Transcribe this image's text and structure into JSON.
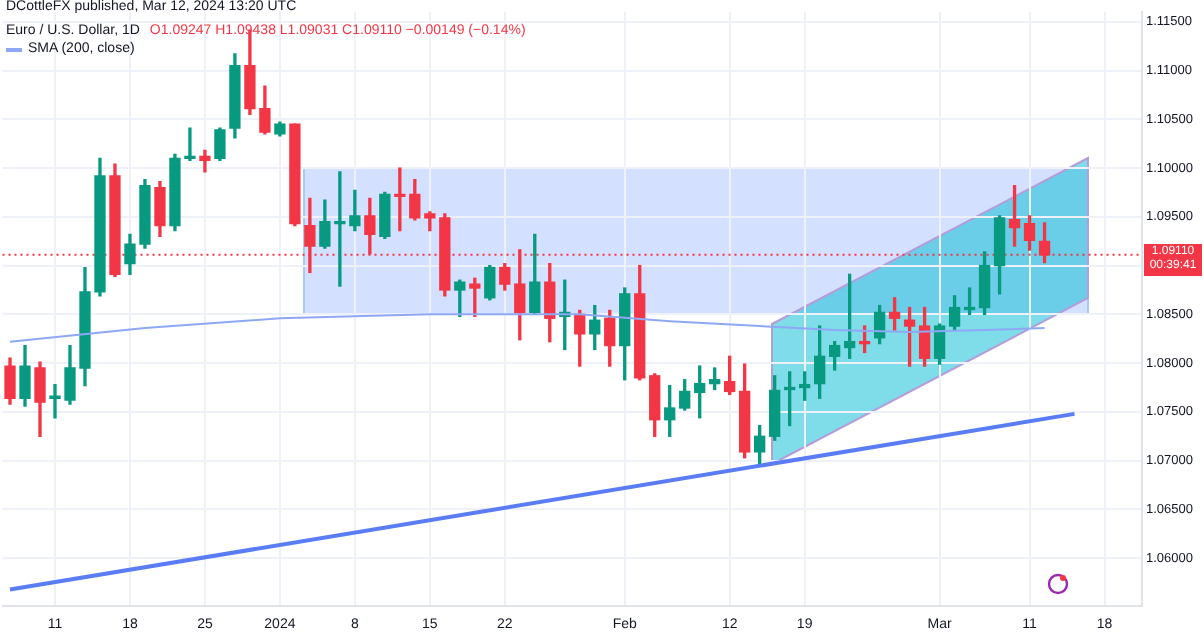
{
  "chart_data": {
    "type": "candlestick",
    "title": "Euro / U.S. Dollar, 1D",
    "annotations": [
      "DCottleFX published, Mar 12, 2024 13:20 UTC",
      "O1.09247 H1.09438 L1.09031 C1.09110 −0.00149 (−0.14%)",
      "00:39:41"
    ],
    "categories": [
      null,
      null,
      null,
      "11",
      null,
      null,
      null,
      null,
      "18",
      null,
      null,
      null,
      null,
      "25",
      null,
      null,
      null,
      null,
      "2024",
      null,
      null,
      null,
      null,
      "8",
      null,
      null,
      null,
      null,
      "15",
      null,
      null,
      null,
      null,
      "22",
      null,
      null,
      null,
      null,
      null,
      null,
      null,
      "Feb",
      null,
      null,
      null,
      null,
      null,
      null,
      "12",
      null,
      null,
      null,
      null,
      "19",
      null,
      null,
      null,
      null,
      null,
      null,
      null,
      null,
      "Mar",
      null,
      null,
      null,
      null,
      null,
      "11",
      null,
      null,
      null,
      null,
      "18",
      null,
      null
    ],
    "ohlc": [
      [
        1.0797,
        1.0805,
        1.0758,
        1.0764
      ],
      [
        1.0764,
        1.0818,
        1.0756,
        1.0797
      ],
      [
        1.0795,
        1.0801,
        1.0725,
        1.076
      ],
      [
        1.0764,
        1.0778,
        1.0744,
        1.0765
      ],
      [
        1.0762,
        1.0818,
        1.0758,
        1.0795
      ],
      [
        1.0795,
        1.0898,
        1.0777,
        1.0873
      ],
      [
        1.0873,
        1.101,
        1.0869,
        1.0992
      ],
      [
        1.0992,
        1.1004,
        1.0889,
        1.0891
      ],
      [
        1.0902,
        1.0932,
        1.0891,
        1.0922
      ],
      [
        1.0922,
        1.0988,
        1.0918,
        1.0982
      ],
      [
        1.098,
        1.0986,
        1.093,
        1.0941
      ],
      [
        1.0941,
        1.1014,
        1.0936,
        1.101
      ],
      [
        1.101,
        1.1041,
        1.1008,
        1.1012
      ],
      [
        1.1012,
        1.1018,
        1.0996,
        1.1008
      ],
      [
        1.101,
        1.1041,
        1.1008,
        1.1039
      ],
      [
        1.1041,
        1.1117,
        1.1031,
        1.1105
      ],
      [
        1.1105,
        1.1141,
        1.1055,
        1.1061
      ],
      [
        1.1061,
        1.1084,
        1.1035,
        1.1037
      ],
      [
        1.1035,
        1.1047,
        1.1033,
        1.1045
      ],
      [
        1.1045,
        1.1045,
        1.0941,
        1.0943
      ],
      [
        1.0941,
        1.0969,
        1.0893,
        1.092
      ],
      [
        1.092,
        1.0967,
        1.0918,
        1.0945
      ],
      [
        1.0943,
        1.0996,
        1.0879,
        1.0944
      ],
      [
        1.0941,
        1.0977,
        1.0936,
        1.0951
      ],
      [
        1.0951,
        1.0969,
        1.0912,
        1.0932
      ],
      [
        1.093,
        1.0975,
        1.0928,
        1.0973
      ],
      [
        1.0973,
        1.1,
        1.0936,
        1.0971
      ],
      [
        1.0973,
        1.0988,
        1.0947,
        1.0949
      ],
      [
        1.0953,
        1.0955,
        1.0936,
        1.0949
      ],
      [
        1.0949,
        1.0953,
        1.0869,
        1.0875
      ],
      [
        1.0875,
        1.0885,
        1.0848,
        1.0883
      ],
      [
        1.0881,
        1.0887,
        1.0848,
        1.0877
      ],
      [
        1.0867,
        1.09,
        1.0865,
        1.0898
      ],
      [
        1.0898,
        1.0902,
        1.0875,
        1.0881
      ],
      [
        1.0881,
        1.0916,
        1.0824,
        1.0852
      ],
      [
        1.0852,
        1.0932,
        1.085,
        1.0883
      ],
      [
        1.0883,
        1.0902,
        1.0822,
        1.0846
      ],
      [
        1.0848,
        1.0885,
        1.0814,
        1.0852
      ],
      [
        1.085,
        1.0854,
        1.0797,
        1.083
      ],
      [
        1.083,
        1.0859,
        1.0814,
        1.0844
      ],
      [
        1.0846,
        1.0854,
        1.0797,
        1.0818
      ],
      [
        1.0818,
        1.0877,
        1.0783,
        1.0871
      ],
      [
        1.0871,
        1.09,
        1.0783,
        1.0785
      ],
      [
        1.0787,
        1.0789,
        1.0725,
        1.0742
      ],
      [
        1.0742,
        1.0777,
        1.0725,
        1.0754
      ],
      [
        1.0754,
        1.0783,
        1.0752,
        1.0771
      ],
      [
        1.077,
        1.0797,
        1.0744,
        1.0779
      ],
      [
        1.0779,
        1.0795,
        1.0773,
        1.0783
      ],
      [
        1.0781,
        1.0807,
        1.0768,
        1.0771
      ],
      [
        1.0771,
        1.0799,
        1.0703,
        1.0709
      ],
      [
        1.0709,
        1.0736,
        1.0697,
        1.0725
      ],
      [
        1.0725,
        1.0787,
        1.0721,
        1.0772
      ],
      [
        1.0773,
        1.0791,
        1.0736,
        1.0775
      ],
      [
        1.0775,
        1.0791,
        1.0762,
        1.0778
      ],
      [
        1.0779,
        1.0838,
        1.0764,
        1.0807
      ],
      [
        1.0807,
        1.0822,
        1.0793,
        1.0818
      ],
      [
        1.0816,
        1.0891,
        1.0805,
        1.0822
      ],
      [
        1.0822,
        1.0838,
        1.0811,
        1.082
      ],
      [
        1.0826,
        1.0859,
        1.082,
        1.0852
      ],
      [
        1.0852,
        1.0867,
        1.0834,
        1.0846
      ],
      [
        1.0844,
        1.0857,
        1.0797,
        1.0838
      ],
      [
        1.0838,
        1.0857,
        1.0797,
        1.0805
      ],
      [
        1.0805,
        1.084,
        1.0799,
        1.0838
      ],
      [
        1.0838,
        1.0869,
        1.0834,
        1.0857
      ],
      [
        1.0855,
        1.0877,
        1.085,
        1.0857
      ],
      [
        1.0857,
        1.0914,
        1.085,
        1.09
      ],
      [
        1.09,
        1.0951,
        1.0871,
        1.0949
      ],
      [
        1.0947,
        1.0982,
        1.092,
        1.0939
      ],
      [
        1.0943,
        1.0951,
        1.0916,
        1.0926
      ],
      [
        1.09247,
        1.09438,
        1.09031,
        1.0911
      ],
      null,
      null,
      null,
      null,
      null,
      null
    ],
    "colors": [
      "#f23645",
      "#089981",
      "#f23645",
      "#089981",
      "#089981",
      "#089981",
      "#089981",
      "#f23645",
      "#089981",
      "#089981",
      "#f23645",
      "#089981",
      "#089981",
      "#f23645",
      "#089981",
      "#089981",
      "#f23645",
      "#f23645",
      "#089981",
      "#f23645",
      "#f23645",
      "#089981",
      "#089981",
      "#089981",
      "#f23645",
      "#089981",
      "#f23645",
      "#f23645",
      "#f23645",
      "#f23645",
      "#089981",
      "#f23645",
      "#089981",
      "#f23645",
      "#f23645",
      "#089981",
      "#f23645",
      "#089981",
      "#f23645",
      "#089981",
      "#f23645",
      "#089981",
      "#f23645",
      "#f23645",
      "#089981",
      "#089981",
      "#089981",
      "#089981",
      "#f23645",
      "#f23645",
      "#089981",
      "#089981",
      "#089981",
      "#089981",
      "#089981",
      "#089981",
      "#089981",
      "#f23645",
      "#089981",
      "#f23645",
      "#f23645",
      "#f23645",
      "#089981",
      "#089981",
      "#089981",
      "#089981",
      "#089981",
      "#f23645",
      "#f23645",
      "#f23645",
      null,
      null,
      null,
      null,
      null,
      null
    ],
    "series": [
      {
        "name": "SMA (200, close)",
        "type": "line",
        "color": "#8fa7f7",
        "values": [
          1.0822,
          null,
          null,
          null,
          null,
          null,
          null,
          null,
          null,
          1.0836,
          null,
          null,
          null,
          null,
          null,
          null,
          null,
          null,
          1.0846,
          null,
          null,
          null,
          null,
          null,
          null,
          null,
          null,
          null,
          1.085,
          null,
          null,
          null,
          null,
          null,
          null,
          null,
          null,
          null,
          1.085,
          null,
          null,
          null,
          null,
          null,
          1.0843,
          null,
          null,
          null,
          null,
          null,
          1.0838,
          null,
          null,
          null,
          null,
          1.0834,
          null,
          null,
          null,
          null,
          1.0832,
          null,
          null,
          null,
          null,
          1.0834,
          null,
          null,
          null,
          1.0836,
          null,
          null,
          null,
          null,
          null,
          null
        ]
      },
      {
        "type": "line",
        "color": "#5a7df5",
        "values": [
          1.0568,
          null,
          null,
          null,
          null,
          null,
          null,
          null,
          null,
          null,
          null,
          null,
          null,
          null,
          null,
          null,
          null,
          null,
          null,
          null,
          null,
          null,
          null,
          null,
          null,
          null,
          null,
          null,
          null,
          null,
          null,
          null,
          null,
          null,
          null,
          null,
          null,
          null,
          null,
          null,
          null,
          null,
          null,
          null,
          null,
          null,
          null,
          null,
          null,
          null,
          null,
          null,
          null,
          null,
          null,
          null,
          null,
          null,
          null,
          null,
          null,
          null,
          null,
          null,
          null,
          null,
          null,
          null,
          null,
          null,
          null,
          1.0748,
          null,
          null,
          null,
          null
        ]
      }
    ],
    "ylim": [
      1.0551,
      1.116
    ],
    "yticks": [
      {
        "value": 1.06,
        "label": "1.06000"
      },
      {
        "value": 1.065,
        "label": "1.06500"
      },
      {
        "value": 1.07,
        "label": "1.07000"
      },
      {
        "value": 1.075,
        "label": "1.07500"
      },
      {
        "value": 1.08,
        "label": "1.08000"
      },
      {
        "value": 1.085,
        "label": "1.08500"
      },
      {
        "value": 1.09,
        "label": null
      },
      {
        "value": 1.095,
        "label": "1.09500"
      },
      {
        "value": 1.1,
        "label": "1.10000"
      },
      {
        "value": 1.105,
        "label": "1.10500"
      },
      {
        "value": 1.11,
        "label": "1.11000"
      },
      {
        "value": 1.115,
        "label": "1.11500"
      }
    ],
    "ref_lines": [
      {
        "axis": "y",
        "value": 1.0911,
        "label": "1.09110",
        "color": "#f23645",
        "line_style": "dotted"
      }
    ],
    "grid": true,
    "legend": "top left",
    "marker": "none"
  }
}
